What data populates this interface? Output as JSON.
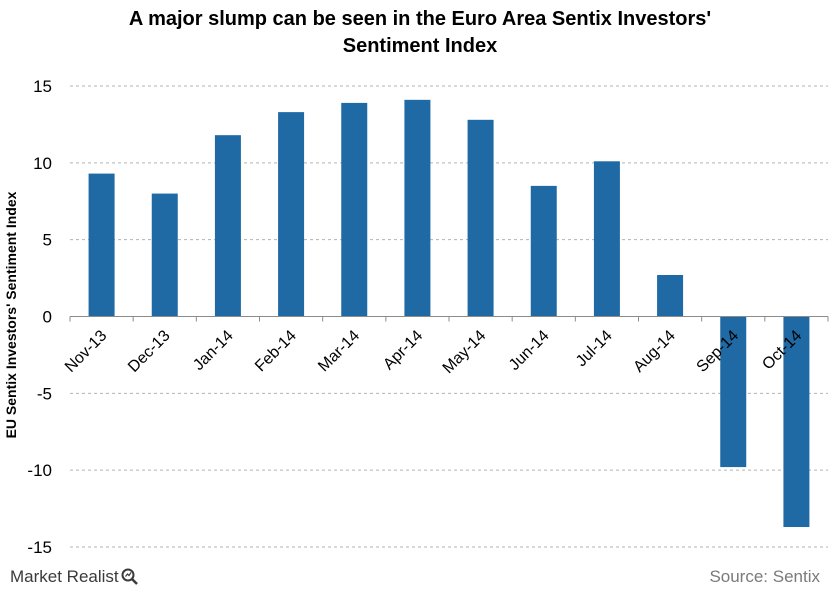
{
  "chart_data": {
    "type": "bar",
    "title": "A major slump can be seen in the Euro Area Sentix Investors' Sentiment Index",
    "title_lines": [
      "A major slump can be seen in the Euro Area Sentix Investors'",
      "Sentiment Index"
    ],
    "ylabel": "EU Sentix Investors' Sentiment Index",
    "xlabel": "",
    "categories": [
      "Nov-13",
      "Dec-13",
      "Jan-14",
      "Feb-14",
      "Mar-14",
      "Apr-14",
      "May-14",
      "Jun-14",
      "Jul-14",
      "Aug-14",
      "Sep-14",
      "Oct-14"
    ],
    "values": [
      9.3,
      8.0,
      11.8,
      13.3,
      13.9,
      14.1,
      12.8,
      8.5,
      10.1,
      2.7,
      -9.8,
      -13.7
    ],
    "ylim": [
      -15,
      15
    ],
    "yticks": [
      15,
      10,
      5,
      0,
      -5,
      -10,
      -15
    ],
    "ytick_labels": [
      "15",
      "10",
      "5",
      "0",
      "-5",
      "-10",
      "-15"
    ],
    "grid": "horizontal dashed",
    "bar_color": "#1f6aa5"
  },
  "footer": {
    "brand": "Market Realist",
    "source": "Source: Sentix"
  }
}
